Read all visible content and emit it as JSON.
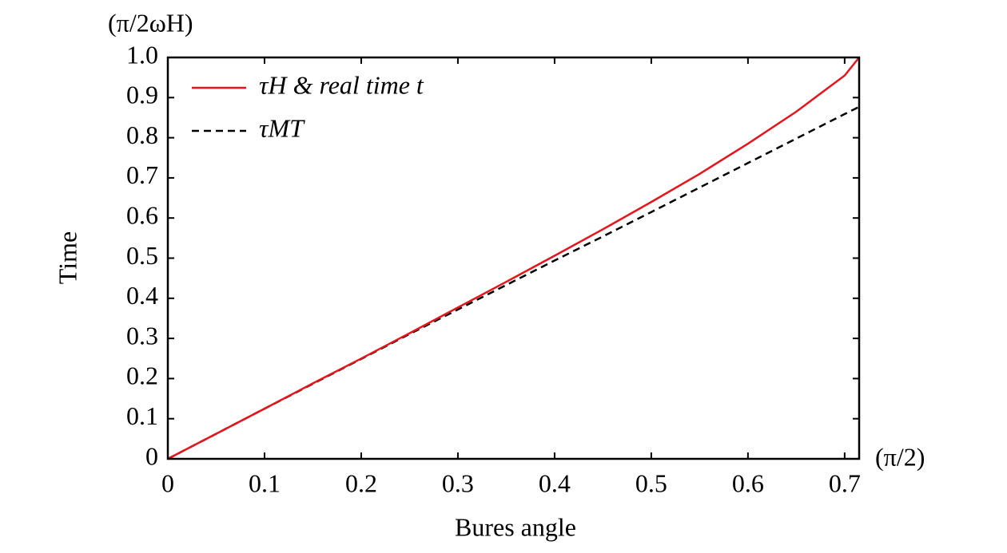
{
  "chart_data": {
    "type": "line",
    "x_label": "Bures angle",
    "y_label": "Time",
    "x_unit": "(π/2)",
    "y_unit": "(π/2ωH)",
    "x": [
      0,
      0.05,
      0.1,
      0.15,
      0.2,
      0.25,
      0.3,
      0.35,
      0.4,
      0.45,
      0.5,
      0.55,
      0.6,
      0.65,
      0.7,
      0.715
    ],
    "series": [
      {
        "name": "τH & real time t",
        "color": "#e8141c",
        "dash": false,
        "values": [
          0,
          0.0625,
          0.125,
          0.188,
          0.25,
          0.313,
          0.377,
          0.441,
          0.506,
          0.572,
          0.64,
          0.71,
          0.785,
          0.865,
          0.955,
          1.0
        ]
      },
      {
        "name": "τMT",
        "color": "#000000",
        "dash": true,
        "values": [
          0,
          0.0625,
          0.125,
          0.187,
          0.249,
          0.311,
          0.372,
          0.433,
          0.494,
          0.554,
          0.615,
          0.676,
          0.737,
          0.798,
          0.859,
          0.877
        ]
      }
    ],
    "xlim": [
      0,
      0.715
    ],
    "ylim": [
      0,
      1
    ],
    "xticks": [
      0,
      0.1,
      0.2,
      0.3,
      0.4,
      0.5,
      0.6,
      0.7
    ],
    "yticks": [
      0,
      0.1,
      0.2,
      0.3,
      0.4,
      0.5,
      0.6,
      0.7,
      0.8,
      0.9,
      {
        "value": 1,
        "label": "1.0"
      }
    ],
    "legend": "upper left"
  }
}
